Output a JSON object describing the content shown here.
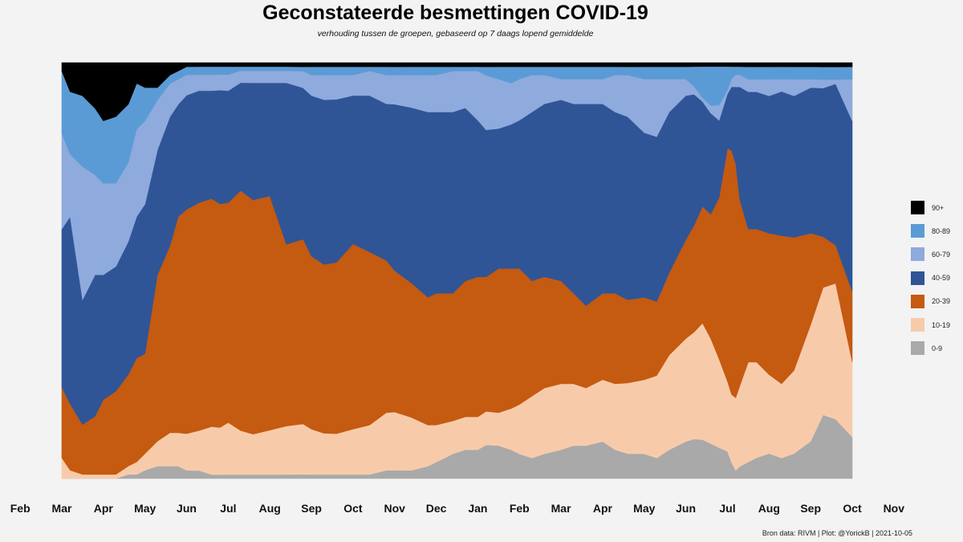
{
  "title": "Geconstateerde besmettingen COVID-19",
  "subtitle": "verhouding tussen de groepen, gebaseerd op 7 daags lopend gemiddelde",
  "caption": "Bron data: RIVM  | Plot: @YorickB |  2021-10-05",
  "chart_data": {
    "type": "area",
    "stacked": true,
    "normalized": true,
    "ylim": [
      0,
      1
    ],
    "x_axis": {
      "tick_labels": [
        "Feb",
        "Mar",
        "Apr",
        "May",
        "Jun",
        "Jul",
        "Aug",
        "Sep",
        "Oct",
        "Nov",
        "Dec",
        "Jan",
        "Feb",
        "Mar",
        "Apr",
        "May",
        "Jun",
        "Jul",
        "Aug",
        "Sep",
        "Oct",
        "Nov"
      ],
      "tick_months": [
        0,
        1,
        2,
        3,
        4,
        5,
        6,
        7,
        8,
        9,
        10,
        11,
        12,
        13,
        14,
        15,
        16,
        17,
        18,
        19,
        20,
        21
      ],
      "data_range_months": [
        1,
        20
      ],
      "start": "2020-02",
      "end": "2021-11"
    },
    "x_months": [
      1.0,
      1.2,
      1.5,
      1.8,
      2.0,
      2.3,
      2.6,
      2.8,
      3.0,
      3.3,
      3.6,
      3.8,
      4.0,
      4.3,
      4.6,
      4.8,
      5.0,
      5.3,
      5.6,
      6.0,
      6.4,
      6.8,
      7.0,
      7.3,
      7.6,
      8.0,
      8.4,
      8.8,
      9.0,
      9.4,
      9.8,
      10.0,
      10.4,
      10.7,
      11.0,
      11.2,
      11.5,
      11.8,
      12.0,
      12.3,
      12.6,
      13.0,
      13.3,
      13.6,
      14.0,
      14.3,
      14.6,
      15.0,
      15.3,
      15.6,
      16.0,
      16.2,
      16.4,
      16.6,
      16.8,
      17.0,
      17.1,
      17.2,
      17.3,
      17.5,
      17.7,
      18.0,
      18.3,
      18.6,
      19.0,
      19.3,
      19.6,
      20.0
    ],
    "series": [
      {
        "name": "0-9",
        "color": "#a9a9a9",
        "values": [
          0.0,
          0.0,
          0.0,
          0.0,
          0.0,
          0.0,
          0.01,
          0.01,
          0.02,
          0.03,
          0.03,
          0.03,
          0.02,
          0.02,
          0.01,
          0.01,
          0.01,
          0.01,
          0.01,
          0.01,
          0.01,
          0.01,
          0.01,
          0.01,
          0.01,
          0.01,
          0.01,
          0.02,
          0.02,
          0.02,
          0.03,
          0.04,
          0.06,
          0.07,
          0.07,
          0.08,
          0.08,
          0.07,
          0.06,
          0.05,
          0.06,
          0.07,
          0.08,
          0.08,
          0.09,
          0.07,
          0.06,
          0.06,
          0.05,
          0.07,
          0.09,
          0.1,
          0.1,
          0.09,
          0.08,
          0.07,
          0.04,
          0.02,
          0.03,
          0.04,
          0.05,
          0.06,
          0.05,
          0.06,
          0.09,
          0.15,
          0.14,
          0.1
        ]
      },
      {
        "name": "10-19",
        "color": "#f7cbaa",
        "values": [
          0.05,
          0.02,
          0.01,
          0.01,
          0.01,
          0.01,
          0.02,
          0.03,
          0.04,
          0.06,
          0.08,
          0.08,
          0.09,
          0.1,
          0.12,
          0.12,
          0.13,
          0.11,
          0.1,
          0.11,
          0.12,
          0.12,
          0.11,
          0.1,
          0.1,
          0.11,
          0.12,
          0.14,
          0.14,
          0.13,
          0.1,
          0.09,
          0.08,
          0.08,
          0.08,
          0.08,
          0.08,
          0.1,
          0.12,
          0.15,
          0.16,
          0.16,
          0.15,
          0.14,
          0.15,
          0.16,
          0.17,
          0.18,
          0.2,
          0.23,
          0.25,
          0.27,
          0.3,
          0.27,
          0.23,
          0.18,
          0.17,
          0.18,
          0.2,
          0.24,
          0.23,
          0.19,
          0.18,
          0.2,
          0.28,
          0.3,
          0.32,
          0.18
        ]
      },
      {
        "name": "20-39",
        "color": "#c55a11",
        "values": [
          0.17,
          0.16,
          0.12,
          0.14,
          0.18,
          0.2,
          0.22,
          0.25,
          0.24,
          0.4,
          0.45,
          0.52,
          0.55,
          0.57,
          0.57,
          0.57,
          0.55,
          0.6,
          0.58,
          0.58,
          0.45,
          0.44,
          0.42,
          0.41,
          0.42,
          0.45,
          0.42,
          0.37,
          0.34,
          0.33,
          0.31,
          0.32,
          0.31,
          0.33,
          0.34,
          0.32,
          0.35,
          0.34,
          0.33,
          0.28,
          0.27,
          0.25,
          0.22,
          0.2,
          0.21,
          0.22,
          0.2,
          0.2,
          0.18,
          0.2,
          0.24,
          0.27,
          0.3,
          0.32,
          0.42,
          0.6,
          0.61,
          0.58,
          0.46,
          0.32,
          0.32,
          0.34,
          0.36,
          0.32,
          0.22,
          0.12,
          0.09,
          0.17
        ]
      },
      {
        "name": "40-59",
        "color": "#2f5597",
        "values": [
          0.38,
          0.45,
          0.3,
          0.34,
          0.3,
          0.3,
          0.32,
          0.34,
          0.36,
          0.3,
          0.31,
          0.27,
          0.28,
          0.28,
          0.27,
          0.29,
          0.28,
          0.27,
          0.29,
          0.28,
          0.4,
          0.36,
          0.39,
          0.4,
          0.4,
          0.36,
          0.38,
          0.38,
          0.4,
          0.43,
          0.45,
          0.44,
          0.44,
          0.42,
          0.38,
          0.35,
          0.34,
          0.35,
          0.36,
          0.41,
          0.42,
          0.44,
          0.46,
          0.49,
          0.46,
          0.44,
          0.44,
          0.4,
          0.4,
          0.39,
          0.35,
          0.33,
          0.27,
          0.26,
          0.2,
          0.14,
          0.16,
          0.19,
          0.28,
          0.33,
          0.33,
          0.33,
          0.35,
          0.34,
          0.35,
          0.35,
          0.38,
          0.41
        ]
      },
      {
        "name": "60-79",
        "color": "#8faadc",
        "values": [
          0.23,
          0.15,
          0.32,
          0.24,
          0.22,
          0.2,
          0.19,
          0.21,
          0.2,
          0.12,
          0.08,
          0.06,
          0.05,
          0.04,
          0.04,
          0.04,
          0.04,
          0.03,
          0.03,
          0.03,
          0.03,
          0.04,
          0.05,
          0.06,
          0.06,
          0.05,
          0.06,
          0.07,
          0.07,
          0.08,
          0.09,
          0.09,
          0.1,
          0.09,
          0.12,
          0.13,
          0.12,
          0.1,
          0.1,
          0.09,
          0.07,
          0.05,
          0.06,
          0.06,
          0.06,
          0.09,
          0.1,
          0.13,
          0.14,
          0.08,
          0.04,
          0.02,
          0.01,
          0.02,
          0.04,
          0.01,
          0.02,
          0.03,
          0.03,
          0.03,
          0.03,
          0.04,
          0.03,
          0.04,
          0.02,
          0.02,
          0.01,
          0.1
        ]
      },
      {
        "name": "80-89",
        "color": "#5b9bd5",
        "values": [
          0.15,
          0.15,
          0.17,
          0.16,
          0.15,
          0.16,
          0.14,
          0.11,
          0.08,
          0.03,
          0.02,
          0.02,
          0.02,
          0.02,
          0.02,
          0.02,
          0.02,
          0.01,
          0.01,
          0.01,
          0.01,
          0.01,
          0.02,
          0.02,
          0.02,
          0.02,
          0.01,
          0.02,
          0.02,
          0.02,
          0.02,
          0.02,
          0.01,
          0.01,
          0.01,
          0.02,
          0.03,
          0.04,
          0.03,
          0.02,
          0.02,
          0.03,
          0.03,
          0.03,
          0.03,
          0.02,
          0.02,
          0.03,
          0.03,
          0.03,
          0.03,
          0.05,
          0.08,
          0.1,
          0.1,
          0.06,
          0.03,
          0.02,
          0.02,
          0.03,
          0.03,
          0.03,
          0.03,
          0.03,
          0.03,
          0.03,
          0.03,
          0.03
        ]
      },
      {
        "name": "90+",
        "color": "#000000",
        "values": [
          0.02,
          0.07,
          0.08,
          0.11,
          0.14,
          0.13,
          0.1,
          0.05,
          0.06,
          0.06,
          0.03,
          0.02,
          0.01,
          0.01,
          0.01,
          0.01,
          0.01,
          0.01,
          0.01,
          0.01,
          0.01,
          0.01,
          0.01,
          0.01,
          0.01,
          0.01,
          0.01,
          0.01,
          0.01,
          0.01,
          0.01,
          0.01,
          0.01,
          0.01,
          0.01,
          0.01,
          0.01,
          0.01,
          0.01,
          0.01,
          0.01,
          0.01,
          0.01,
          0.01,
          0.01,
          0.01,
          0.01,
          0.01,
          0.01,
          0.01,
          0.01,
          0.01,
          0.01,
          0.01,
          0.01,
          0.01,
          0.01,
          0.01,
          0.01,
          0.01,
          0.01,
          0.01,
          0.01,
          0.01,
          0.01,
          0.01,
          0.01,
          0.01
        ]
      }
    ]
  }
}
